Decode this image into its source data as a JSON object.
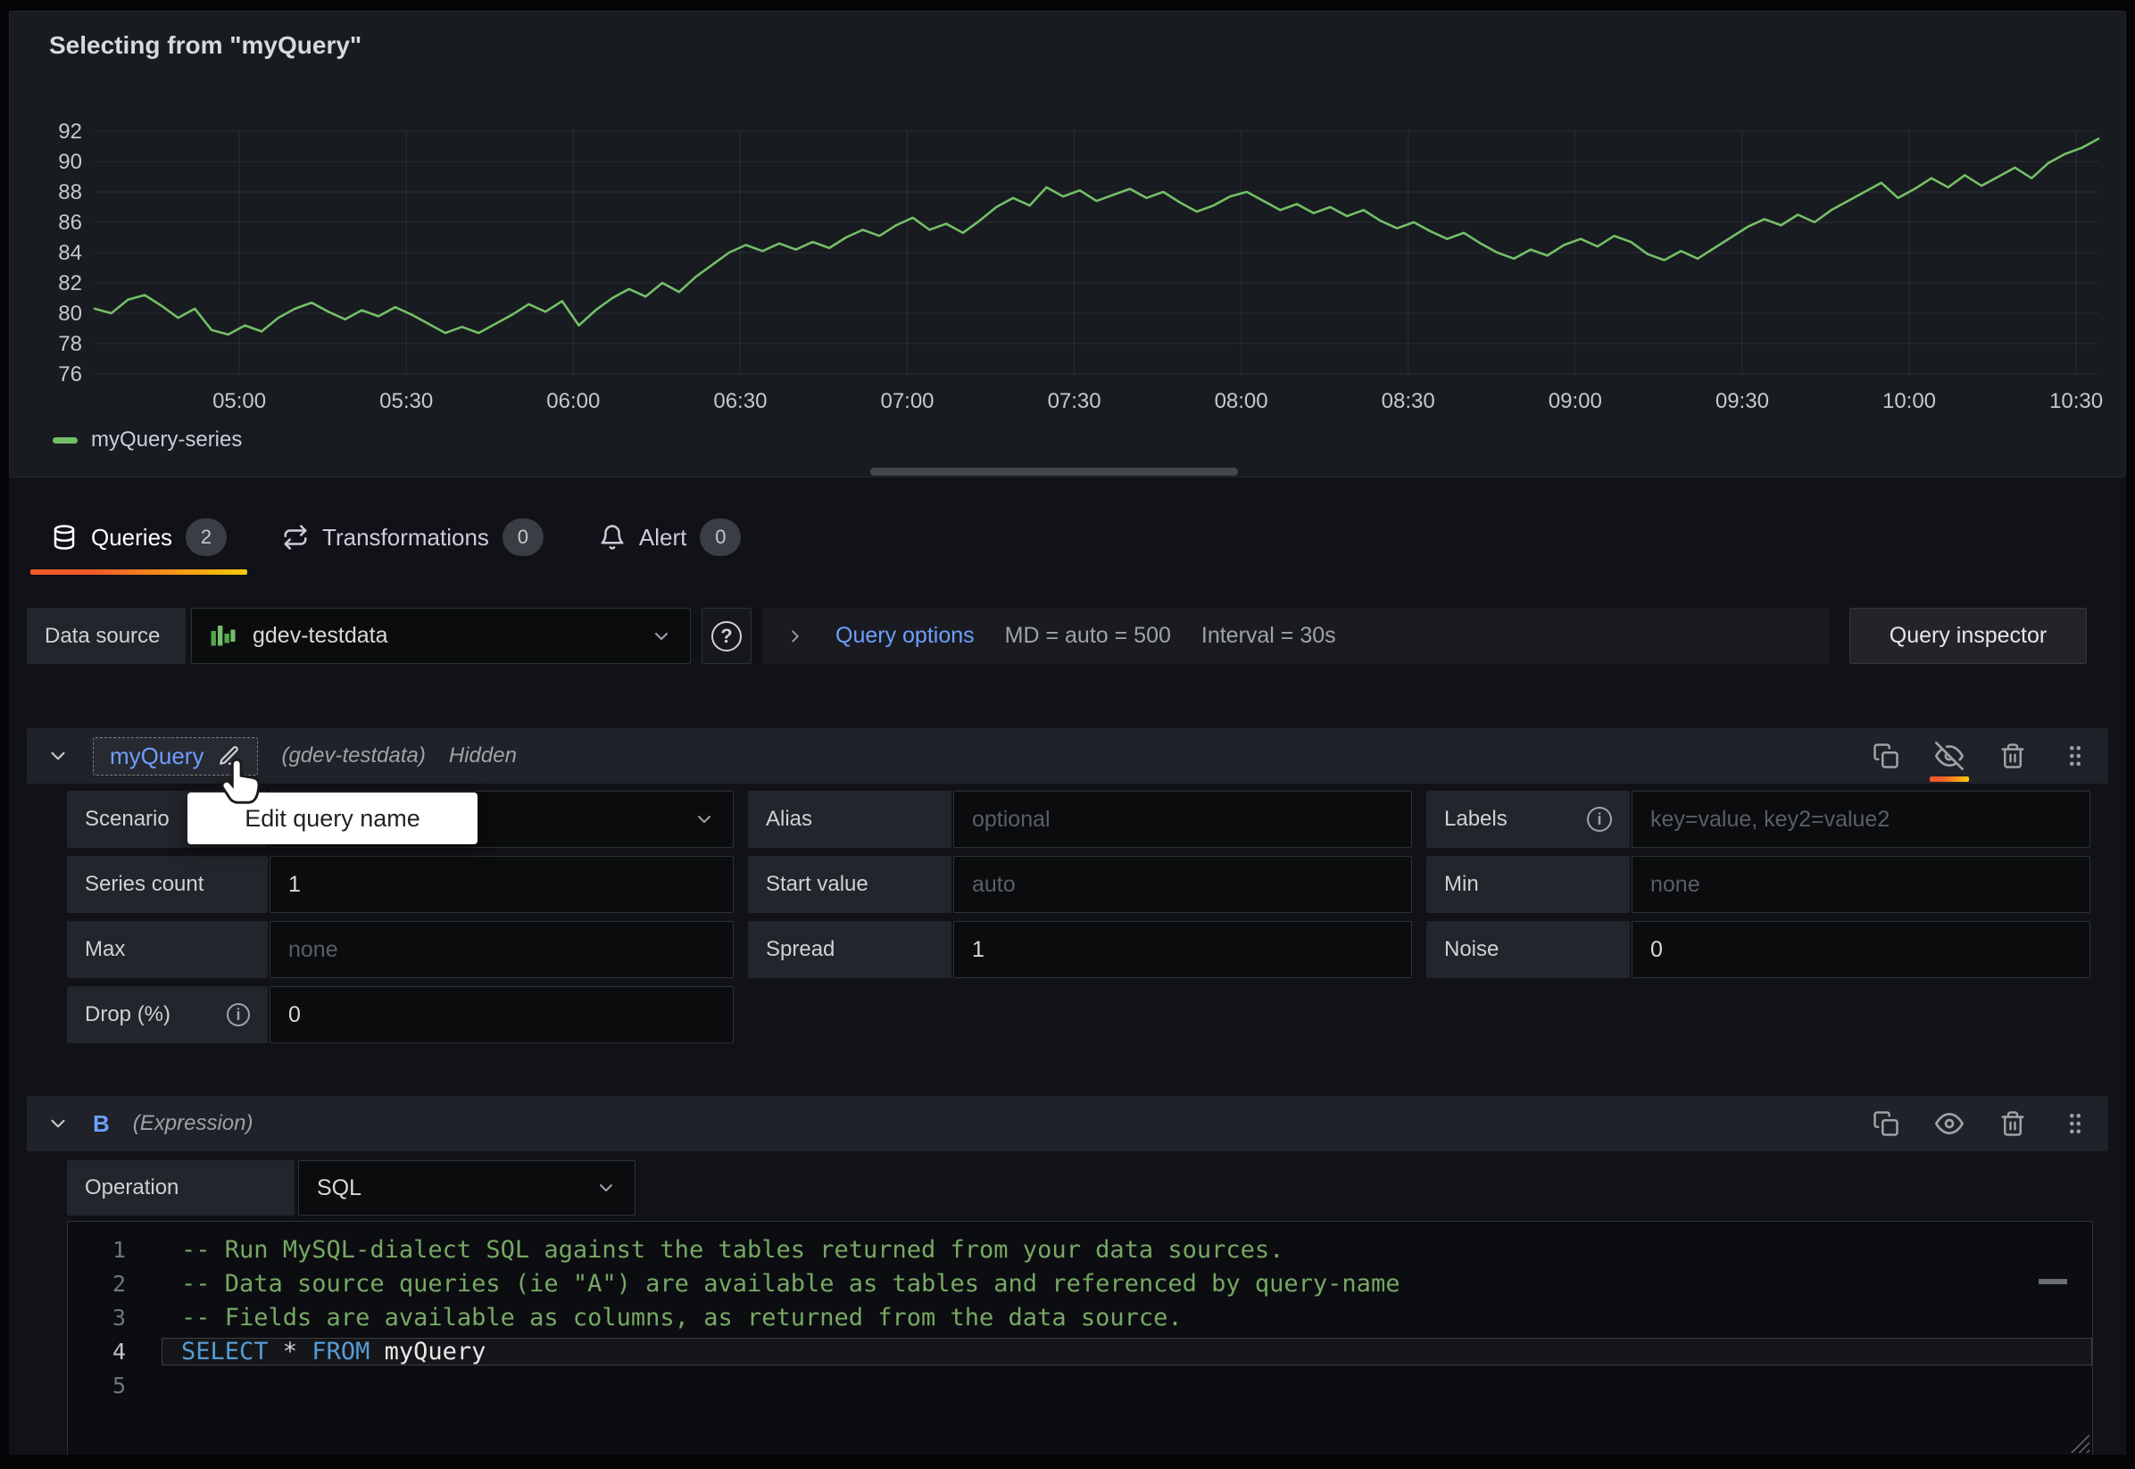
{
  "panel": {
    "title": "Selecting from \"myQuery\""
  },
  "legend": {
    "label": "myQuery-series"
  },
  "chart_data": {
    "type": "line",
    "series_name": "myQuery-series",
    "color": "#73bf69",
    "ylim": [
      76,
      92
    ],
    "y_ticks": [
      76,
      78,
      80,
      82,
      84,
      86,
      88,
      90,
      92
    ],
    "x_ticks": [
      {
        "min": 300,
        "label": "05:00"
      },
      {
        "min": 330,
        "label": "05:30"
      },
      {
        "min": 360,
        "label": "06:00"
      },
      {
        "min": 390,
        "label": "06:30"
      },
      {
        "min": 420,
        "label": "07:00"
      },
      {
        "min": 450,
        "label": "07:30"
      },
      {
        "min": 480,
        "label": "08:00"
      },
      {
        "min": 510,
        "label": "08:30"
      },
      {
        "min": 540,
        "label": "09:00"
      },
      {
        "min": 570,
        "label": "09:30"
      },
      {
        "min": 600,
        "label": "10:00"
      },
      {
        "min": 630,
        "label": "10:30"
      }
    ],
    "x_start_min": 274,
    "step_min": 3,
    "grid": true,
    "legend_position": "bottom-left",
    "values": [
      80.3,
      80.0,
      80.9,
      81.2,
      80.5,
      79.7,
      80.3,
      78.9,
      78.6,
      79.2,
      78.8,
      79.7,
      80.3,
      80.7,
      80.1,
      79.6,
      80.2,
      79.8,
      80.4,
      79.9,
      79.3,
      78.7,
      79.1,
      78.7,
      79.3,
      79.9,
      80.6,
      80.1,
      80.8,
      79.2,
      80.2,
      81.0,
      81.6,
      81.1,
      82.0,
      81.4,
      82.4,
      83.2,
      84.0,
      84.5,
      84.1,
      84.6,
      84.2,
      84.7,
      84.3,
      85.0,
      85.5,
      85.1,
      85.8,
      86.3,
      85.5,
      85.9,
      85.3,
      86.1,
      87.0,
      87.6,
      87.1,
      88.3,
      87.7,
      88.1,
      87.4,
      87.8,
      88.2,
      87.6,
      88.0,
      87.3,
      86.7,
      87.1,
      87.7,
      88.0,
      87.4,
      86.8,
      87.2,
      86.6,
      87.0,
      86.4,
      86.8,
      86.1,
      85.6,
      86.0,
      85.4,
      84.9,
      85.3,
      84.6,
      84.0,
      83.6,
      84.2,
      83.8,
      84.5,
      84.9,
      84.4,
      85.1,
      84.7,
      83.9,
      83.5,
      84.1,
      83.6,
      84.3,
      85.0,
      85.7,
      86.2,
      85.8,
      86.5,
      86.0,
      86.8,
      87.4,
      88.0,
      88.6,
      87.6,
      88.2,
      88.9,
      88.3,
      89.1,
      88.4,
      89.0,
      89.6,
      88.9,
      89.9,
      90.5,
      90.9,
      91.5
    ]
  },
  "tabs": {
    "queries": {
      "label": "Queries",
      "count": "2"
    },
    "transformations": {
      "label": "Transformations",
      "count": "0"
    },
    "alert": {
      "label": "Alert",
      "count": "0"
    }
  },
  "ds": {
    "label": "Data source",
    "value": "gdev-testdata",
    "options_label": "Query options",
    "md": "MD = auto = 500",
    "interval": "Interval = 30s",
    "inspector": "Query inspector"
  },
  "qa": {
    "name": "myQuery",
    "source": "(gdev-testdata)",
    "state": "Hidden",
    "tooltip": "Edit query name",
    "scenario_label": "Scenario",
    "alias_label": "Alias",
    "alias_ph": "optional",
    "labels_label": "Labels",
    "labels_ph": "key=value, key2=value2",
    "series_count_label": "Series count",
    "series_count_value": "1",
    "start_label": "Start value",
    "start_ph": "auto",
    "min_label": "Min",
    "min_ph": "none",
    "max_label": "Max",
    "max_ph": "none",
    "spread_label": "Spread",
    "spread_value": "1",
    "noise_label": "Noise",
    "noise_value": "0",
    "drop_label": "Drop (%)",
    "drop_value": "0"
  },
  "qb": {
    "name": "B",
    "source": "(Expression)",
    "operation_label": "Operation",
    "operation_value": "SQL"
  },
  "code": {
    "n1": "1",
    "n2": "2",
    "n3": "3",
    "n4": "4",
    "n5": "5",
    "l1": "-- Run MySQL-dialect SQL against the tables returned from your data sources.",
    "l2": "-- Data source queries (ie \"A\") are available as tables and referenced by query-name",
    "l3": "-- Fields are available as columns, as returned from the data source.",
    "kw1": "SELECT",
    "star": " * ",
    "kw2": "FROM",
    "table": " myQuery"
  },
  "colors": {
    "accent_blue": "#6e9fff",
    "series_green": "#73bf69",
    "active_tab_orange": "#f05a28",
    "comment_green": "#76a864",
    "keyword_blue": "#569cd6"
  }
}
